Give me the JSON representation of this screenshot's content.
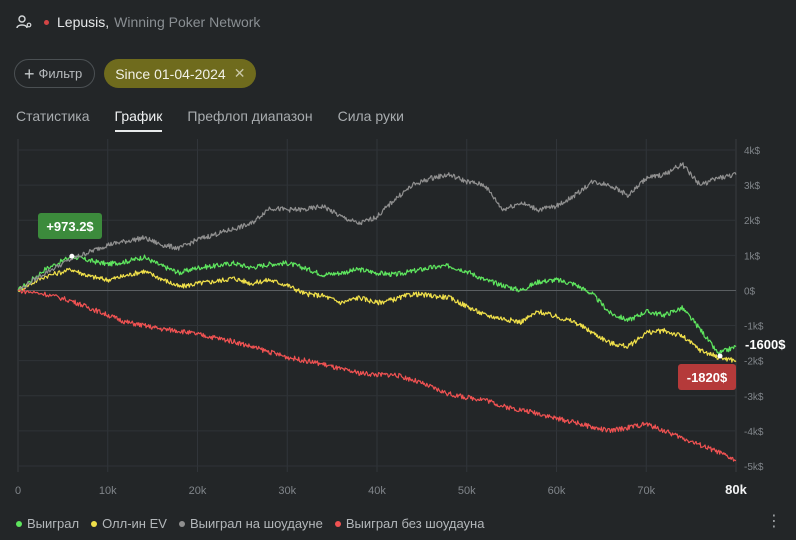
{
  "header": {
    "player_name": "Lepusis",
    "comma": ",",
    "network": "Winning Poker Network",
    "status_color": "#d44545"
  },
  "filters": {
    "filter_label": "Фильтр",
    "date_chip": "Since 01-04-2024",
    "date_chip_color": "#6f6b1d"
  },
  "tabs": [
    {
      "label": "Статистика",
      "active": false
    },
    {
      "label": "График",
      "active": true
    },
    {
      "label": "Префлоп диапазон",
      "active": false
    },
    {
      "label": "Сила руки",
      "active": false
    }
  ],
  "legend": [
    {
      "label": "Выиграл",
      "color": "#5ee55e"
    },
    {
      "label": "Олл-ин EV",
      "color": "#f0e04a"
    },
    {
      "label": "Выиграл на шоудауне",
      "color": "#8f8f8f"
    },
    {
      "label": "Выиграл без шоудауна",
      "color": "#f05252"
    }
  ],
  "chart_data": {
    "type": "line",
    "xlim": [
      0,
      80000
    ],
    "ylim": [
      -5000,
      4000
    ],
    "x_ticks": [
      "0",
      "10k",
      "20k",
      "30k",
      "40k",
      "50k",
      "60k",
      "70k",
      "80k"
    ],
    "y_ticks": [
      "4k$",
      "3k$",
      "2k$",
      "1k$",
      "0$",
      "-1k$",
      "-2k$",
      "-3k$",
      "-4k$",
      "-5k$"
    ],
    "series": [
      {
        "name": "Выиграл",
        "color": "#5ee55e",
        "x": [
          0,
          3000,
          6000,
          8000,
          10000,
          12000,
          14000,
          16000,
          18000,
          20000,
          22000,
          24000,
          26000,
          28000,
          30000,
          32000,
          34000,
          36000,
          38000,
          40000,
          42000,
          44000,
          46000,
          48000,
          50000,
          52000,
          54000,
          56000,
          58000,
          60000,
          62000,
          64000,
          66000,
          68000,
          70000,
          72000,
          74000,
          76000,
          78000,
          80000
        ],
        "y": [
          0,
          600,
          973,
          850,
          750,
          820,
          950,
          700,
          500,
          650,
          700,
          780,
          650,
          750,
          780,
          630,
          450,
          500,
          600,
          500,
          450,
          550,
          650,
          700,
          550,
          300,
          150,
          0,
          250,
          300,
          180,
          -100,
          -650,
          -850,
          -600,
          -700,
          -500,
          -1100,
          -1800,
          -1600
        ]
      },
      {
        "name": "Олл-ин EV",
        "color": "#f0e04a",
        "x": [
          0,
          3000,
          6000,
          8000,
          10000,
          12000,
          14000,
          16000,
          18000,
          20000,
          22000,
          24000,
          26000,
          28000,
          30000,
          32000,
          34000,
          36000,
          38000,
          40000,
          42000,
          44000,
          46000,
          48000,
          50000,
          52000,
          54000,
          56000,
          58000,
          60000,
          62000,
          64000,
          66000,
          68000,
          70000,
          72000,
          74000,
          76000,
          78000,
          80000
        ],
        "y": [
          0,
          400,
          600,
          400,
          300,
          420,
          550,
          330,
          100,
          200,
          260,
          350,
          200,
          300,
          150,
          -100,
          -150,
          -350,
          -200,
          -350,
          -250,
          -100,
          -150,
          -200,
          -450,
          -700,
          -800,
          -900,
          -600,
          -750,
          -900,
          -1200,
          -1500,
          -1600,
          -1200,
          -1150,
          -1300,
          -1700,
          -1900,
          -2000
        ]
      },
      {
        "name": "Выиграл на шоудауне",
        "color": "#8f8f8f",
        "x": [
          0,
          3000,
          6000,
          8000,
          10000,
          12000,
          14000,
          16000,
          18000,
          20000,
          22000,
          24000,
          26000,
          28000,
          30000,
          32000,
          34000,
          36000,
          38000,
          40000,
          42000,
          44000,
          46000,
          48000,
          50000,
          52000,
          54000,
          56000,
          58000,
          60000,
          62000,
          64000,
          66000,
          68000,
          70000,
          72000,
          74000,
          76000,
          78000,
          80000
        ],
        "y": [
          0,
          500,
          900,
          1100,
          1300,
          1400,
          1500,
          1300,
          1200,
          1450,
          1600,
          1750,
          1900,
          2350,
          2300,
          2300,
          2400,
          2100,
          1900,
          2100,
          2600,
          3000,
          3200,
          3300,
          3100,
          3000,
          2300,
          2500,
          2300,
          2400,
          2700,
          3100,
          3000,
          2700,
          3200,
          3300,
          3600,
          3000,
          3200,
          3300
        ]
      },
      {
        "name": "Выиграл без шоудауна",
        "color": "#f05252",
        "x": [
          0,
          3000,
          6000,
          8000,
          10000,
          12000,
          14000,
          16000,
          18000,
          20000,
          22000,
          24000,
          26000,
          28000,
          30000,
          32000,
          34000,
          36000,
          38000,
          40000,
          42000,
          44000,
          46000,
          48000,
          50000,
          52000,
          54000,
          56000,
          58000,
          60000,
          62000,
          64000,
          66000,
          68000,
          70000,
          72000,
          74000,
          76000,
          78000,
          80000
        ],
        "y": [
          0,
          -100,
          -300,
          -500,
          -700,
          -900,
          -1000,
          -1100,
          -1150,
          -1250,
          -1350,
          -1450,
          -1600,
          -1750,
          -1900,
          -2000,
          -2100,
          -2250,
          -2350,
          -2400,
          -2400,
          -2550,
          -2750,
          -2950,
          -3050,
          -3100,
          -3300,
          -3400,
          -3500,
          -3650,
          -3750,
          -3900,
          -4000,
          -3900,
          -3800,
          -4000,
          -4200,
          -4400,
          -4600,
          -4850
        ]
      }
    ],
    "annotations": {
      "peak_label": "+973.2$",
      "end_label_white": "-1600$",
      "end_label_red": "-1820$"
    },
    "x_highlight_tick": "80k",
    "grid": true
  }
}
